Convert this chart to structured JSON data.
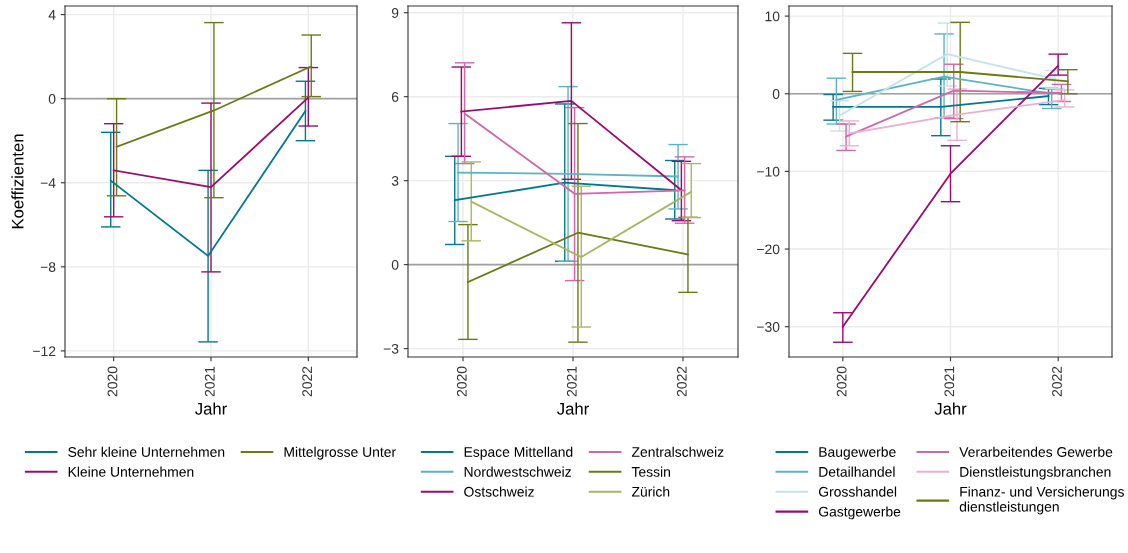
{
  "chart_data": [
    {
      "type": "line",
      "xlabel": "Jahr",
      "ylabel": "Koeffizienten",
      "categories": [
        "2020",
        "2021",
        "2022"
      ],
      "ylim": [
        -12.29,
        4.41
      ],
      "yticks": [
        -12,
        -8,
        -4,
        0,
        4
      ],
      "grid": true,
      "legend": "bottom",
      "ref_lines": [
        {
          "axis": "y",
          "value": 0,
          "color": "#a0a0a0"
        }
      ],
      "series": [
        {
          "name": "Sehr kleine Unternehmen",
          "color": "#00798c",
          "values": [
            -3.9,
            -7.48,
            -0.59
          ],
          "errors": [
            [
              -6.1,
              -1.6
            ],
            [
              -11.57,
              -3.41
            ],
            [
              -2.0,
              0.83
            ]
          ]
        },
        {
          "name": "Kleine Unternehmen",
          "color": "#9c0a70",
          "values": [
            -3.41,
            -4.21,
            0.06
          ],
          "errors": [
            [
              -5.62,
              -1.19
            ],
            [
              -8.24,
              -0.21
            ],
            [
              -1.3,
              1.48
            ]
          ]
        },
        {
          "name": "Mittelgrosse Unter",
          "color": "#6b7a14",
          "values": [
            -2.29,
            -0.56,
            1.54
          ],
          "errors": [
            [
              -4.62,
              0
            ],
            [
              -4.71,
              3.62
            ],
            [
              0.1,
              3.03
            ]
          ]
        }
      ]
    },
    {
      "type": "line",
      "xlabel": "Jahr",
      "categories": [
        "2020",
        "2021",
        "2022"
      ],
      "ylim": [
        -3.3,
        9.24
      ],
      "yticks": [
        -3,
        0,
        3,
        6,
        9
      ],
      "grid": true,
      "legend": "bottom",
      "ref_lines": [
        {
          "axis": "y",
          "value": 0,
          "color": "#a0a0a0"
        }
      ],
      "series": [
        {
          "name": "Espace Mittelland",
          "color": "#00798c",
          "values": [
            2.3,
            2.93,
            2.66
          ],
          "errors": [
            [
              0.72,
              3.87
            ],
            [
              0.12,
              5.74
            ],
            [
              1.63,
              3.72
            ]
          ]
        },
        {
          "name": "Nordwestschweiz",
          "color": "#5ab4c8",
          "values": [
            3.29,
            3.24,
            3.15
          ],
          "errors": [
            [
              1.54,
              5.04
            ],
            [
              0.12,
              6.36
            ],
            [
              1.99,
              4.29
            ]
          ]
        },
        {
          "name": "Ostschweiz",
          "color": "#9c0a70",
          "values": [
            5.47,
            5.85,
            2.66
          ],
          "errors": [
            [
              3.87,
              7.06
            ],
            [
              3.05,
              8.64
            ],
            [
              1.57,
              3.69
            ]
          ]
        },
        {
          "name": "Zentralschweiz",
          "color": "#d166a8",
          "values": [
            5.4,
            2.53,
            2.65
          ],
          "errors": [
            [
              3.61,
              7.21
            ],
            [
              -0.57,
              5.61
            ],
            [
              1.48,
              3.85
            ]
          ]
        },
        {
          "name": "Tessin",
          "color": "#6b7a14",
          "values": [
            -0.62,
            1.14,
            0.36
          ],
          "errors": [
            [
              -2.67,
              1.43
            ],
            [
              -2.77,
              5.04
            ],
            [
              -0.99,
              1.69
            ]
          ]
        },
        {
          "name": "Zürich",
          "color": "#a9b560",
          "values": [
            2.25,
            0.27,
            2.6
          ],
          "errors": [
            [
              0.85,
              3.67
            ],
            [
              -2.23,
              2.8
            ],
            [
              1.68,
              3.61
            ]
          ]
        }
      ]
    },
    {
      "type": "line",
      "xlabel": "Jahr",
      "categories": [
        "2020",
        "2021",
        "2022"
      ],
      "ylim": [
        -33.9,
        11.3
      ],
      "yticks": [
        -30,
        -20,
        -10,
        0,
        10
      ],
      "grid": true,
      "legend": "bottom",
      "ref_lines": [
        {
          "axis": "y",
          "value": 0,
          "color": "#a0a0a0"
        }
      ],
      "series": [
        {
          "name": "Baugewerbe",
          "color": "#00798c",
          "values": [
            -1.7,
            -1.7,
            -0.3
          ],
          "errors": [
            [
              -3.4,
              -0.1
            ],
            [
              -5.4,
              1.9
            ],
            [
              -1.4,
              0.7
            ]
          ]
        },
        {
          "name": "Detailhandel",
          "color": "#5ab4c8",
          "values": [
            -0.8,
            2.2,
            0
          ],
          "errors": [
            [
              -3.9,
              2.0
            ],
            [
              -3.1,
              7.7
            ],
            [
              -1.9,
              0.6
            ]
          ]
        },
        {
          "name": "Grosshandel",
          "color": "#c5e3ea",
          "values": [
            -2.8,
            5.1,
            1.9
          ],
          "errors": [
            [
              -4.8,
              -0.9
            ],
            [
              1.0,
              9.1
            ],
            [
              0.7,
              3.0
            ]
          ]
        },
        {
          "name": "Gastgewerbe",
          "color": "#9c0a70",
          "values": [
            -30,
            -10.3,
            3.6
          ],
          "errors": [
            [
              -32.0,
              -28.2
            ],
            [
              -13.9,
              -6.7
            ],
            [
              2.4,
              5.1
            ]
          ]
        },
        {
          "name": "Verarbeitendes Gewerbe",
          "color": "#d166a8",
          "values": [
            -5.5,
            0.4,
            0.1
          ],
          "errors": [
            [
              -7.3,
              -3.9
            ],
            [
              -3.2,
              3.8
            ],
            [
              -1.0,
              1.2
            ]
          ]
        },
        {
          "name": "Dienstleistungsbranchen",
          "color": "#ecaed2",
          "values": [
            -5.1,
            -2.7,
            -0.8
          ],
          "errors": [
            [
              -6.7,
              -3.5
            ],
            [
              -6.0,
              0.6
            ],
            [
              -1.7,
              0.5
            ]
          ]
        },
        {
          "name": "Finanz- und Versicherungs\ndienstleistungen",
          "color": "#6b7a14",
          "values": [
            2.8,
            2.8,
            1.6
          ],
          "errors": [
            [
              0.3,
              5.2
            ],
            [
              -3.6,
              9.2
            ],
            [
              0,
              3.1
            ]
          ]
        }
      ]
    }
  ]
}
